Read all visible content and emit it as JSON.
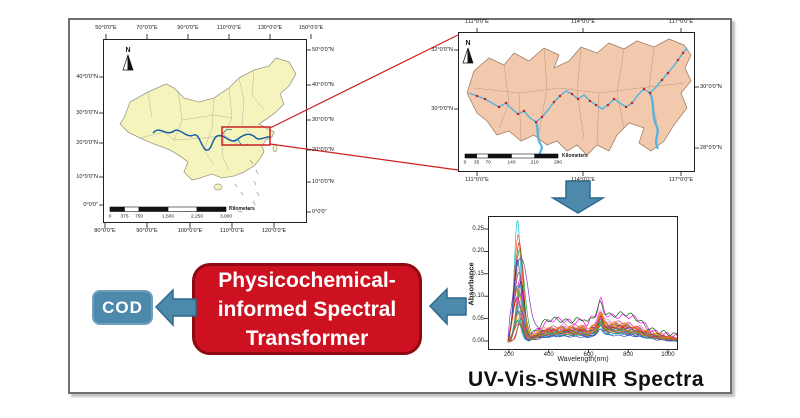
{
  "figure": {
    "title": "UV-Vis-SWNIR Spectra",
    "transformer_lines": [
      "Physicochemical-",
      "informed Spectral",
      "Transformer"
    ],
    "cod_label": "COD"
  },
  "china_map": {
    "compass": "N",
    "ticks_top": [
      "50°0'0\"E",
      "70°0'0\"E",
      "90°0'0\"E",
      "110°0'0\"E",
      "130°0'0\"E",
      "150°0'0\"E"
    ],
    "ticks_bottom": [
      "80°0'0\"E",
      "90°0'0\"E",
      "100°0'0\"E",
      "110°0'0\"E",
      "120°0'0\"E"
    ],
    "ticks_left": [
      "40°0'0\"N",
      "30°0'0\"N",
      "20°0'0\"N",
      "10°0'0\"N",
      "0°0'0\""
    ],
    "ticks_right": [
      "50°0'0\"N",
      "40°0'0\"N",
      "30°0'0\"N",
      "20°0'0\"N",
      "10°0'0\"N",
      "0°0'0\""
    ],
    "scale_labels": [
      "0",
      "375",
      "750",
      "1,500",
      "2,250",
      "3,000"
    ],
    "scale_unit": "Kilometers"
  },
  "basin_map": {
    "compass": "N",
    "ticks_top": [
      "111°0'0\"E",
      "114°0'0\"E",
      "117°0'0\"E"
    ],
    "ticks_bottom": [
      "111°0'0\"E",
      "114°0'0\"E",
      "117°0'0\"E"
    ],
    "ticks_left": [
      "32°0'0\"N",
      "30°0'0\"N"
    ],
    "ticks_right": [
      "30°0'0\"N",
      "28°0'0\"N"
    ],
    "scale_labels": [
      "0",
      "35",
      "70",
      "140",
      "210",
      "280"
    ],
    "scale_unit": "Kilometers"
  },
  "chart_data": {
    "type": "line",
    "title": "UV-Vis-SWNIR Spectra",
    "xlabel": "Wavelength(nm)",
    "ylabel": "Absorbance",
    "xticks": [
      200,
      400,
      600,
      800,
      1000
    ],
    "ytick_labels": [
      "0.25",
      "0.20",
      "0.15",
      "0.10",
      "0.05",
      "0.00"
    ],
    "yticks": [
      0.25,
      0.2,
      0.15,
      0.1,
      0.05,
      0.0
    ],
    "xlim": [
      95,
      1050
    ],
    "ylim": [
      -0.02,
      0.28
    ],
    "x_start_nm": 190,
    "x_end_nm": 1100,
    "grid": false,
    "legend": "none",
    "description": "About 30 overlapping absorbance spectra of water samples; each has a sharp UV peak near 240-260 nm (heights 0.04-0.27), a low broad plateau from 350-850 nm (0.01-0.06) with a common dip near 590 nm, a sharp common peak near 655 nm (up to ~0.08 total), and decay toward ~0 at 1100 nm.",
    "series": [
      {
        "color": "#17becf",
        "uv_peak": 0.27,
        "plateau": 0.018,
        "peak650": 0.03
      },
      {
        "color": "#ff5510",
        "uv_peak": 0.24,
        "plateau": 0.022,
        "peak650": 0.028
      },
      {
        "color": "#d62728",
        "uv_peak": 0.22,
        "plateau": 0.025,
        "peak650": 0.032
      },
      {
        "color": "#2ca02c",
        "uv_peak": 0.205,
        "plateau": 0.03,
        "peak650": 0.03
      },
      {
        "color": "#7b2fbe",
        "uv_peak": 0.19,
        "plateau": 0.028,
        "peak650": 0.025,
        "wide": 1
      },
      {
        "color": "#1f3fb4",
        "uv_peak": 0.185,
        "plateau": 0.015,
        "peak650": 0.02
      },
      {
        "color": "#e377c2",
        "uv_peak": 0.16,
        "plateau": 0.035,
        "peak650": 0.03
      },
      {
        "color": "#8c564b",
        "uv_peak": 0.15,
        "plateau": 0.03,
        "peak650": 0.028
      },
      {
        "color": "#ff00ff",
        "uv_peak": 0.14,
        "plateau": 0.048,
        "peak650": 0.035
      },
      {
        "color": "#006400",
        "uv_peak": 0.13,
        "plateau": 0.05,
        "peak650": 0.03
      },
      {
        "color": "#1f77b4",
        "uv_peak": 0.125,
        "plateau": 0.027,
        "peak650": 0.026
      },
      {
        "color": "#ff7f0e",
        "uv_peak": 0.12,
        "plateau": 0.032,
        "peak650": 0.03
      },
      {
        "color": "#bcbd22",
        "uv_peak": 0.11,
        "plateau": 0.024,
        "peak650": 0.022
      },
      {
        "color": "#17a2b8",
        "uv_peak": 0.105,
        "plateau": 0.02,
        "peak650": 0.02
      },
      {
        "color": "#9467bd",
        "uv_peak": 0.1,
        "plateau": 0.03,
        "peak650": 0.028
      },
      {
        "color": "#e8000b",
        "uv_peak": 0.095,
        "plateau": 0.026,
        "peak650": 0.025
      },
      {
        "color": "#2f9e44",
        "uv_peak": 0.09,
        "plateau": 0.022,
        "peak650": 0.022
      },
      {
        "color": "#f06595",
        "uv_peak": 0.085,
        "plateau": 0.034,
        "peak650": 0.03
      },
      {
        "color": "#4263eb",
        "uv_peak": 0.08,
        "plateau": 0.018,
        "peak650": 0.018
      },
      {
        "color": "#f59f00",
        "uv_peak": 0.075,
        "plateau": 0.028,
        "peak650": 0.026
      },
      {
        "color": "#0ca678",
        "uv_peak": 0.07,
        "plateau": 0.02,
        "peak650": 0.02
      },
      {
        "color": "#845ef7",
        "uv_peak": 0.065,
        "plateau": 0.024,
        "peak650": 0.022
      },
      {
        "color": "#fd7e14",
        "uv_peak": 0.06,
        "plateau": 0.03,
        "peak650": 0.028
      },
      {
        "color": "#37b24d",
        "uv_peak": 0.055,
        "plateau": 0.016,
        "peak650": 0.016
      },
      {
        "color": "#c2255c",
        "uv_peak": 0.05,
        "plateau": 0.026,
        "peak650": 0.024
      },
      {
        "color": "#1098ad",
        "uv_peak": 0.048,
        "plateau": 0.014,
        "peak650": 0.015
      },
      {
        "color": "#5c940d",
        "uv_peak": 0.045,
        "plateau": 0.022,
        "peak650": 0.02
      },
      {
        "color": "#d6336c",
        "uv_peak": 0.042,
        "plateau": 0.018,
        "peak650": 0.018
      },
      {
        "color": "#364fc7",
        "uv_peak": 0.04,
        "plateau": 0.012,
        "peak650": 0.014
      },
      {
        "color": "#e67700",
        "uv_peak": 0.038,
        "plateau": 0.02,
        "peak650": 0.018
      }
    ]
  },
  "colors": {
    "accent_red": "#ce1120",
    "steel_blue": "#4d89ab",
    "china_fill": "#f5f4bc",
    "basin_fill": "#f2c9ac",
    "river_dark": "#1560a5",
    "river_light": "#4fb3e0",
    "marker_red": "#cc2020",
    "inset_red": "#cf2020"
  }
}
